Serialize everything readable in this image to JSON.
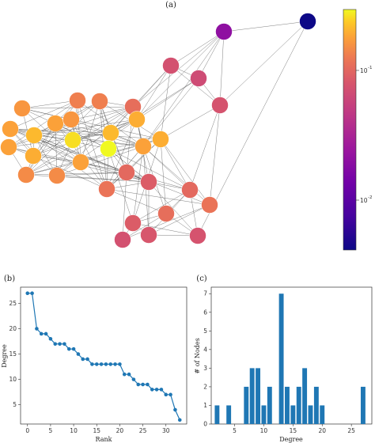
{
  "colors": {
    "line": "#1f77b4",
    "bar": "#1f77b4",
    "edge": "#555555",
    "node_stroke": "#ffffff"
  },
  "colorbar": {
    "ticks": [
      "10",
      "-1",
      "10",
      "-2"
    ],
    "tick_values": [
      0.1,
      0.01
    ],
    "range": [
      0.005,
      0.2
    ],
    "colormap": "plasma"
  },
  "chart_data": [
    {
      "panel": "(a)",
      "type": "network",
      "title": "(a)",
      "colormap": "plasma",
      "color_scale": "log",
      "nodes": [
        {
          "id": 0,
          "color_value": 0.005
        },
        {
          "id": 1,
          "color_value": 0.02
        },
        {
          "id": 2,
          "color_value": 0.06
        },
        {
          "id": 3,
          "color_value": 0.055
        },
        {
          "id": 4,
          "color_value": 0.062
        },
        {
          "id": 5,
          "color_value": 0.1
        },
        {
          "id": 6,
          "color_value": 0.1
        },
        {
          "id": 7,
          "color_value": 0.085
        },
        {
          "id": 8,
          "color_value": 0.12
        },
        {
          "id": 9,
          "color_value": 0.13
        },
        {
          "id": 10,
          "color_value": 0.12
        },
        {
          "id": 11,
          "color_value": 0.14
        },
        {
          "id": 12,
          "color_value": 0.13
        },
        {
          "id": 13,
          "color_value": 0.15
        },
        {
          "id": 14,
          "color_value": 0.15
        },
        {
          "id": 15,
          "color_value": 0.18
        },
        {
          "id": 16,
          "color_value": 0.13
        },
        {
          "id": 17,
          "color_value": 0.2
        },
        {
          "id": 18,
          "color_value": 0.14
        },
        {
          "id": 19,
          "color_value": 0.13
        },
        {
          "id": 20,
          "color_value": 0.14
        },
        {
          "id": 21,
          "color_value": 0.13
        },
        {
          "id": 22,
          "color_value": 0.11
        },
        {
          "id": 23,
          "color_value": 0.11
        },
        {
          "id": 24,
          "color_value": 0.08
        },
        {
          "id": 25,
          "color_value": 0.07
        },
        {
          "id": 26,
          "color_value": 0.09
        },
        {
          "id": 27,
          "color_value": 0.08
        },
        {
          "id": 28,
          "color_value": 0.09
        },
        {
          "id": 29,
          "color_value": 0.085
        },
        {
          "id": 30,
          "color_value": 0.07
        },
        {
          "id": 31,
          "color_value": 0.065
        },
        {
          "id": 32,
          "color_value": 0.062
        },
        {
          "id": 33,
          "color_value": 0.06
        }
      ]
    },
    {
      "panel": "(b)",
      "type": "line",
      "title": "(b)",
      "xlabel": "Rank",
      "ylabel": "Degree",
      "x": [
        0,
        1,
        2,
        3,
        4,
        5,
        6,
        7,
        8,
        9,
        10,
        11,
        12,
        13,
        14,
        15,
        16,
        17,
        18,
        19,
        20,
        21,
        22,
        23,
        24,
        25,
        26,
        27,
        28,
        29,
        30,
        31,
        32,
        33
      ],
      "y": [
        27,
        27,
        20,
        19,
        19,
        18,
        17,
        17,
        17,
        16,
        16,
        15,
        14,
        14,
        13,
        13,
        13,
        13,
        13,
        13,
        13,
        11,
        11,
        10,
        9,
        9,
        9,
        8,
        8,
        8,
        7,
        7,
        4,
        2
      ],
      "xticks": [
        0,
        5,
        10,
        15,
        20,
        25,
        30
      ],
      "yticks": [
        5,
        10,
        15,
        20,
        25
      ],
      "xlim": [
        -1.5,
        34.5
      ],
      "ylim": [
        1.2,
        28.2
      ]
    },
    {
      "panel": "(c)",
      "type": "bar",
      "title": "(c)",
      "xlabel": "Degree",
      "ylabel": "# of Nodes",
      "x": [
        2,
        4,
        7,
        8,
        9,
        10,
        11,
        13,
        14,
        15,
        16,
        17,
        18,
        19,
        20,
        27
      ],
      "values": [
        1,
        1,
        2,
        3,
        3,
        1,
        2,
        7,
        2,
        1,
        2,
        3,
        1,
        2,
        1,
        2
      ],
      "xticks": [
        5,
        10,
        15,
        20,
        25
      ],
      "yticks": [
        0,
        1,
        2,
        3,
        4,
        5,
        6,
        7
      ],
      "xlim": [
        1,
        28.5
      ],
      "ylim": [
        0,
        7.35
      ]
    }
  ]
}
